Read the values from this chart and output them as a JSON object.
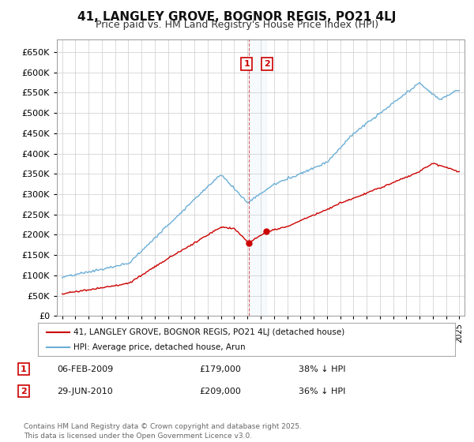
{
  "title": "41, LANGLEY GROVE, BOGNOR REGIS, PO21 4LJ",
  "subtitle": "Price paid vs. HM Land Registry's House Price Index (HPI)",
  "legend_line1": "41, LANGLEY GROVE, BOGNOR REGIS, PO21 4LJ (detached house)",
  "legend_line2": "HPI: Average price, detached house, Arun",
  "annotation1_label": "1",
  "annotation1_date": "06-FEB-2009",
  "annotation1_price": "£179,000",
  "annotation1_pct": "38% ↓ HPI",
  "annotation2_label": "2",
  "annotation2_date": "29-JUN-2010",
  "annotation2_price": "£209,000",
  "annotation2_pct": "36% ↓ HPI",
  "footer": "Contains HM Land Registry data © Crown copyright and database right 2025.\nThis data is licensed under the Open Government Licence v3.0.",
  "hpi_color": "#6baed6",
  "price_color": "#cc0000",
  "marker_color": "#cc0000",
  "ylim_min": 0,
  "ylim_max": 680000,
  "bg_color": "#ffffff",
  "plot_bg_color": "#ffffff",
  "grid_color": "#cccccc",
  "annotation_box_color": "#cc0000",
  "title_fontsize": 11,
  "subtitle_fontsize": 9
}
